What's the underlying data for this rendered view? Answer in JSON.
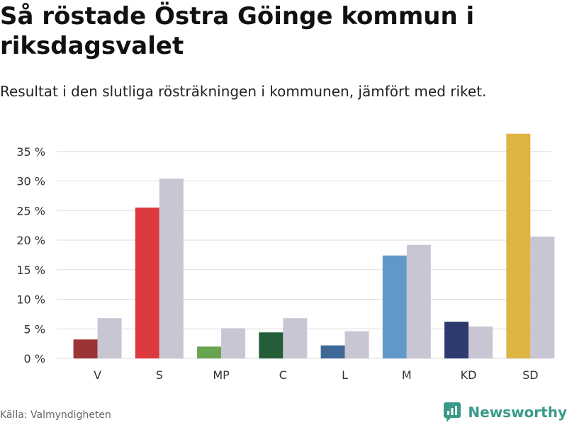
{
  "header": {
    "title": "Så röstade Östra Göinge kommun i riksdagsvalet",
    "subtitle": "Resultat i den slutliga rösträkningen i kommunen, jämfört med riket."
  },
  "footer": {
    "source": "Källa: Valmyndigheten",
    "brand": "Newsworthy",
    "brand_icon": "bar-chart-logo-icon"
  },
  "chart_data": {
    "type": "bar",
    "title": "Så röstade Östra Göinge kommun i riksdagsvalet",
    "subtitle": "Resultat i den slutliga rösträkningen i kommunen, jämfört med riket.",
    "xlabel": "",
    "ylabel": "",
    "ylim": [
      0,
      37
    ],
    "y_ticks": [
      0,
      5,
      10,
      15,
      20,
      25,
      30,
      35
    ],
    "y_tick_labels": [
      "0 %",
      "5 %",
      "10 %",
      "15 %",
      "20 %",
      "25 %",
      "30 %",
      "35 %"
    ],
    "grid": true,
    "categories": [
      "V",
      "S",
      "MP",
      "C",
      "L",
      "M",
      "KD",
      "SD"
    ],
    "party_colors": [
      "#9b3535",
      "#dd3a3f",
      "#68a350",
      "#235e38",
      "#3f6896",
      "#6198c9",
      "#2e3a6e",
      "#deb545"
    ],
    "national_color": "#c8c6d3",
    "series": [
      {
        "name": "Östra Göinge kommun",
        "values": [
          3.2,
          25.5,
          2.0,
          4.4,
          2.2,
          17.4,
          6.2,
          38.0
        ]
      },
      {
        "name": "Riket",
        "values": [
          6.8,
          30.4,
          5.1,
          6.8,
          4.6,
          19.2,
          5.4,
          20.6
        ]
      }
    ]
  }
}
